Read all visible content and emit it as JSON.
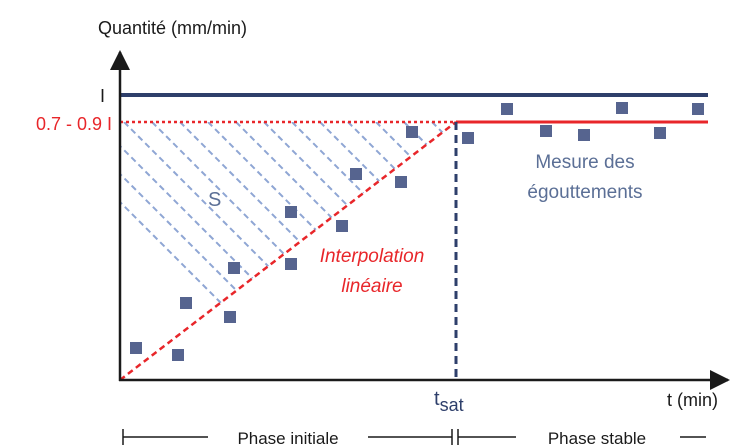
{
  "diagram": {
    "y_axis_label": "Quantité (mm/min)",
    "x_axis_label": "t (min)",
    "level_I_label": "I",
    "level_sat_label": "0.7 - 0.9 I",
    "tsat_label_main": "t",
    "tsat_label_sub": "sat",
    "area_label": "S",
    "interp_label_line1": "Interpolation",
    "interp_label_line2": "linéaire",
    "measure_label_line1": "Mesure des",
    "measure_label_line2": "égouttements",
    "phase_initial_label": "Phase initiale",
    "phase_stable_label": "Phase stable",
    "colors": {
      "navy": "#2e3f6b",
      "red": "#e8262a",
      "hatch": "#8fa6d4",
      "marker": "#56648f",
      "label_blue": "#5b6f96",
      "text": "#1a1a1a"
    }
  }
}
